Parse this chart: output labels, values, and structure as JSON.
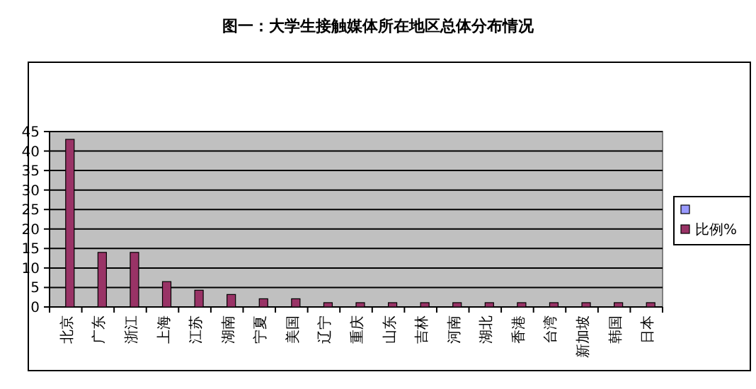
{
  "chart_data": {
    "type": "bar",
    "title": "图一：大学生接触媒体所在地区总体分布情况",
    "categories": [
      "北京",
      "广东",
      "浙江",
      "上海",
      "江苏",
      "湖南",
      "宁夏",
      "美国",
      "辽宁",
      "重庆",
      "山东",
      "吉林",
      "河南",
      "湖北",
      "香港",
      "台湾",
      "新加坡",
      "韩国",
      "日本"
    ],
    "series": [
      {
        "name": "比例%",
        "color": "#993366",
        "values": [
          43,
          14,
          14,
          6.5,
          4.3,
          3.2,
          2.1,
          2.1,
          1.1,
          1.1,
          1.1,
          1.1,
          1.1,
          1.1,
          1.1,
          1.1,
          1.1,
          1.1,
          1.1
        ]
      }
    ],
    "ylim": [
      0,
      45
    ],
    "yticks": [
      0,
      5,
      10,
      15,
      20,
      25,
      30,
      35,
      40,
      45
    ],
    "grid": "y",
    "legend": "right"
  }
}
